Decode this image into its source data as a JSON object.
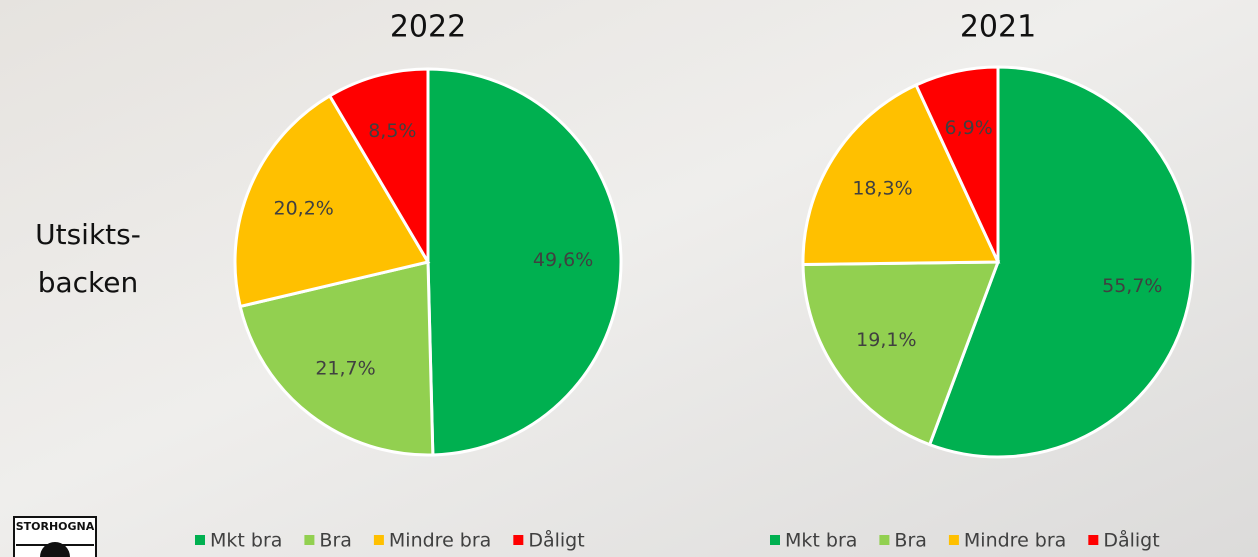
{
  "page": {
    "side_label": [
      "Utsikts-",
      "backen"
    ],
    "logo": "STORHOGNA"
  },
  "chart_data": [
    {
      "type": "pie",
      "title": "2022",
      "categories": [
        "Mkt bra",
        "Bra",
        "Mindre bra",
        "Dåligt"
      ],
      "values": [
        49.6,
        21.7,
        20.2,
        8.5
      ],
      "value_labels": [
        "49,6%",
        "21,7%",
        "20,2%",
        "8,5%"
      ],
      "colors": [
        "#00b050",
        "#92d050",
        "#ffc000",
        "#ff0000"
      ]
    },
    {
      "type": "pie",
      "title": "2021",
      "categories": [
        "Mkt bra",
        "Bra",
        "Mindre bra",
        "Dåligt"
      ],
      "values": [
        55.7,
        19.1,
        18.3,
        6.9
      ],
      "value_labels": [
        "55,7%",
        "19,1%",
        "18,3%",
        "6,9%"
      ],
      "colors": [
        "#00b050",
        "#92d050",
        "#ffc000",
        "#ff0000"
      ]
    }
  ]
}
